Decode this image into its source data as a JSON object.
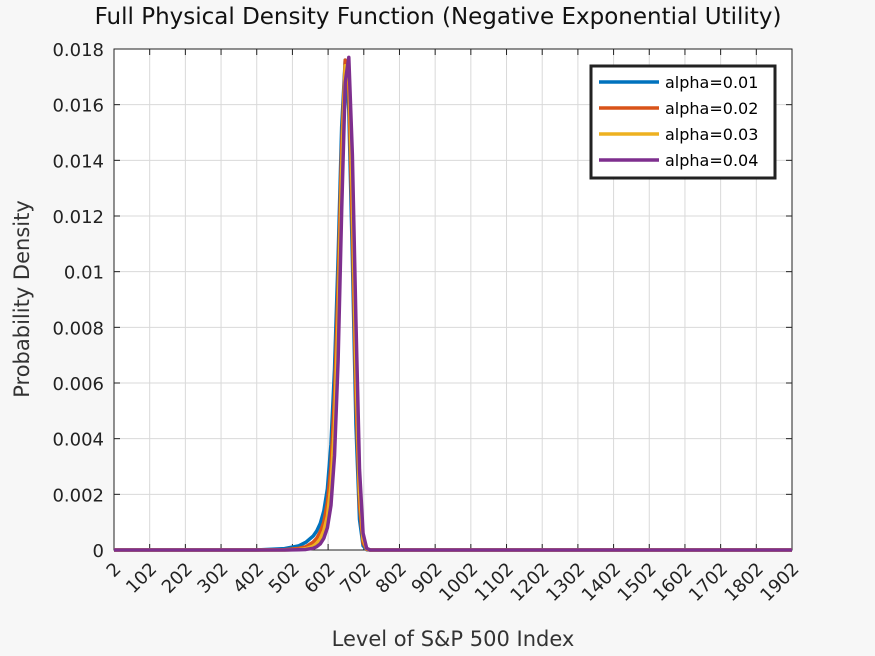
{
  "chart_data": {
    "type": "line",
    "title": "Full Physical Density Function (Negative Exponential Utility)",
    "xlabel": "Level of S&P 500 Index",
    "ylabel": "Probability Density",
    "xlim": [
      2,
      1902
    ],
    "ylim": [
      0,
      0.018
    ],
    "xticks": [
      "2",
      "102",
      "202",
      "302",
      "402",
      "502",
      "602",
      "702",
      "802",
      "902",
      "1002",
      "1102",
      "1202",
      "1302",
      "1402",
      "1502",
      "1602",
      "1702",
      "1802",
      "1902"
    ],
    "yticks": [
      "0",
      "0.002",
      "0.004",
      "0.006",
      "0.008",
      "0.01",
      "0.012",
      "0.014",
      "0.016",
      "0.018"
    ],
    "grid": true,
    "legend": "top-right",
    "x": [
      2,
      400,
      480,
      520,
      540,
      560,
      570,
      580,
      590,
      600,
      610,
      620,
      630,
      640,
      650,
      660,
      670,
      680,
      690,
      700,
      710,
      720,
      740,
      780,
      1902
    ],
    "series": [
      {
        "name": "alpha=0.01",
        "color": "#0072BD",
        "values": [
          0,
          0,
          5e-05,
          0.00015,
          0.00028,
          0.0005,
          0.00068,
          0.00095,
          0.0014,
          0.0022,
          0.0038,
          0.0065,
          0.0105,
          0.0152,
          0.0176,
          0.0158,
          0.0105,
          0.0045,
          0.0011,
          0.00015,
          1e-05,
          0,
          0,
          0,
          0
        ]
      },
      {
        "name": "alpha=0.02",
        "color": "#D95319",
        "values": [
          0,
          0,
          1e-05,
          6e-05,
          0.00012,
          0.00028,
          0.00042,
          0.00065,
          0.001,
          0.0017,
          0.003,
          0.0055,
          0.0095,
          0.0145,
          0.0176,
          0.0165,
          0.0115,
          0.0055,
          0.0016,
          0.00025,
          2e-05,
          0,
          0,
          0,
          0
        ]
      },
      {
        "name": "alpha=0.03",
        "color": "#EDB120",
        "values": [
          0,
          0,
          0,
          2e-05,
          5e-05,
          0.00014,
          0.00024,
          0.0004,
          0.0007,
          0.0012,
          0.0023,
          0.0045,
          0.0083,
          0.0136,
          0.0174,
          0.0172,
          0.0127,
          0.0066,
          0.0021,
          0.0004,
          4e-05,
          0,
          0,
          0,
          0
        ]
      },
      {
        "name": "alpha=0.04",
        "color": "#7E2F8E",
        "values": [
          0,
          0,
          0,
          1e-05,
          2e-05,
          6e-05,
          0.00012,
          0.00022,
          0.00042,
          0.0008,
          0.0016,
          0.0034,
          0.0068,
          0.0122,
          0.0168,
          0.0177,
          0.0142,
          0.0082,
          0.0029,
          0.0006,
          6e-05,
          0,
          0,
          0,
          0
        ]
      }
    ]
  }
}
